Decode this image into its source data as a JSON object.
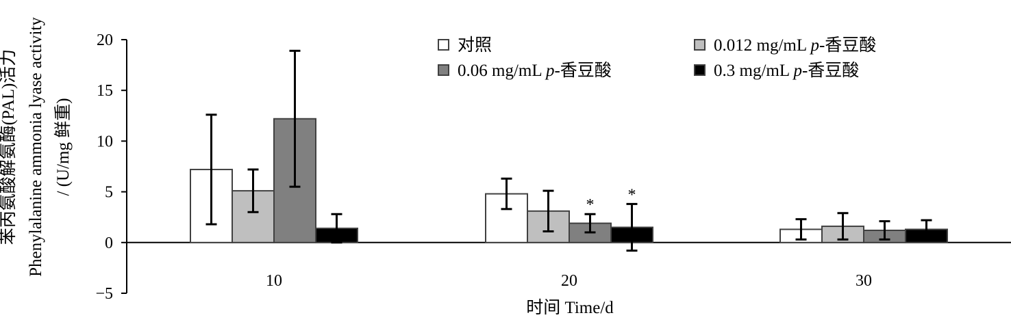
{
  "chart_data": {
    "type": "bar",
    "categories": [
      "10",
      "20",
      "30"
    ],
    "ylim": [
      -5,
      20
    ],
    "yticks": [
      "20",
      "15",
      "10",
      "5",
      "0",
      "−5"
    ],
    "xlabel": "时间  Time/d",
    "ylabel_lines": [
      "苯丙氨酸解氨酶(PAL)活力",
      "Phenylalanine ammonia lyase activity",
      "/ (U/mg 鲜重)"
    ],
    "legend_position": "top-right",
    "series": [
      {
        "name": "对照",
        "values": [
          7.2,
          4.8,
          1.3
        ],
        "errors": [
          5.4,
          1.5,
          1.0
        ],
        "color": "#ffffff",
        "stars": [
          false,
          false,
          false
        ]
      },
      {
        "name": "0.012 mg/mL p-香豆酸",
        "values": [
          5.1,
          3.1,
          1.6
        ],
        "errors": [
          2.1,
          2.0,
          1.3
        ],
        "color": "#bfbfbf",
        "stars": [
          false,
          false,
          false
        ]
      },
      {
        "name": "0.06 mg/mL p-香豆酸",
        "values": [
          12.2,
          1.9,
          1.2
        ],
        "errors": [
          6.7,
          0.9,
          0.9
        ],
        "color": "#808080",
        "stars": [
          false,
          true,
          false
        ]
      },
      {
        "name": "0.3 mg/mL p-香豆酸",
        "values": [
          1.4,
          1.5,
          1.3
        ],
        "errors": [
          1.4,
          2.3,
          0.9
        ],
        "color": "#000000",
        "stars": [
          false,
          true,
          false
        ]
      }
    ],
    "significance_marker": "*",
    "grid": false
  }
}
